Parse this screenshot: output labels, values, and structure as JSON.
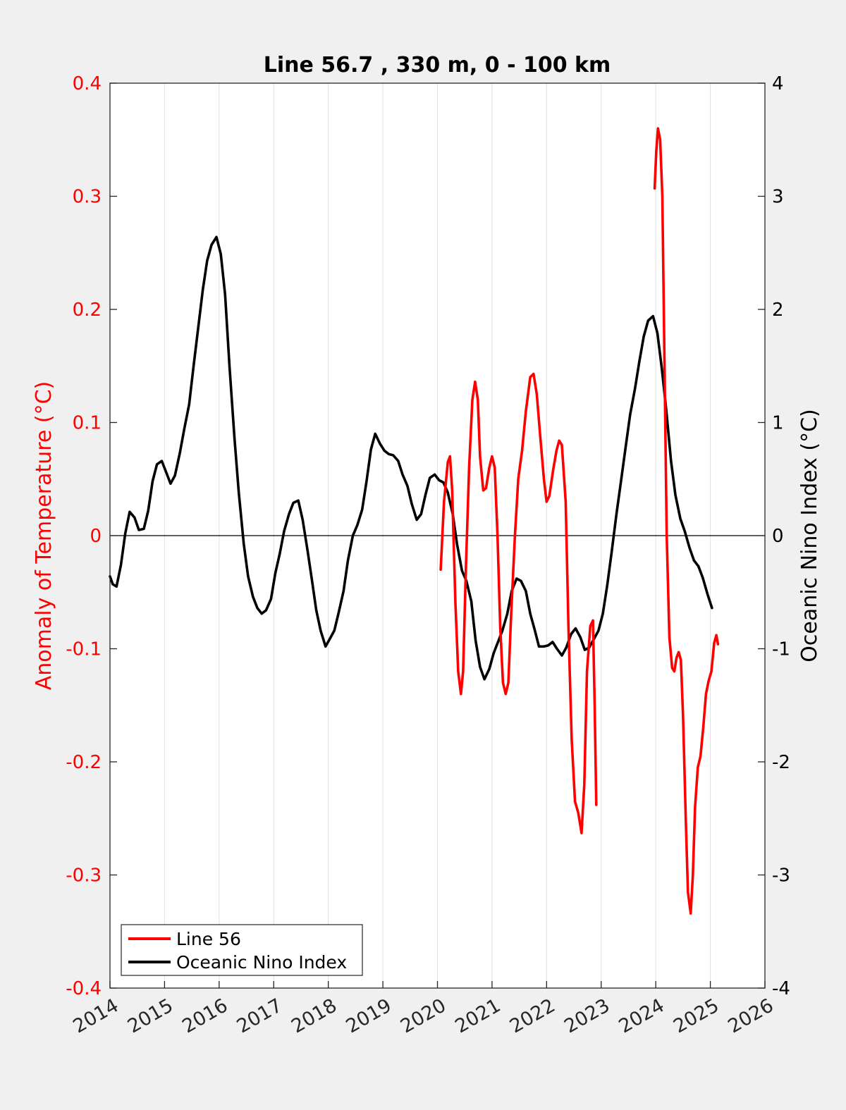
{
  "chart_data": {
    "type": "line",
    "title": "Line 56.7 , 330 m, 0 - 100 km",
    "xlabel": "",
    "ylabel_left": "Anomaly of Temperature (°C)",
    "ylabel_right": "Oceanic Nino Index (°C)",
    "xlim": [
      2014,
      2026
    ],
    "ylim_left": [
      -0.4,
      0.4
    ],
    "ylim_right": [
      -4,
      4
    ],
    "x_ticks": [
      "2014",
      "2015",
      "2016",
      "2017",
      "2018",
      "2019",
      "2020",
      "2021",
      "2022",
      "2023",
      "2024",
      "2025",
      "2026"
    ],
    "y_ticks_left": [
      "-0.4",
      "-0.3",
      "-0.2",
      "-0.1",
      "0",
      "0.1",
      "0.2",
      "0.3",
      "0.4"
    ],
    "y_ticks_right": [
      "-4",
      "-3",
      "-2",
      "-1",
      "0",
      "1",
      "2",
      "3",
      "4"
    ],
    "grid": "vertical",
    "zero_line": true,
    "legend_position": "bottom-left",
    "colors": {
      "line56": "#ff0000",
      "oni": "#000000",
      "left_axis": "#ff0000",
      "right_axis": "#000000",
      "plot_bg": "#ffffff",
      "page_bg": "#f0f0f0",
      "grid": "#e0e0e0"
    },
    "series": [
      {
        "name": "Line 56",
        "axis": "left",
        "color": "#ff0000",
        "segments": [
          [
            [
              2020.06,
              -0.03
            ],
            [
              2020.12,
              0.03
            ],
            [
              2020.19,
              0.065
            ],
            [
              2020.23,
              0.07
            ],
            [
              2020.27,
              0.04
            ],
            [
              2020.33,
              -0.06
            ],
            [
              2020.38,
              -0.12
            ],
            [
              2020.43,
              -0.14
            ],
            [
              2020.47,
              -0.12
            ],
            [
              2020.52,
              -0.03
            ],
            [
              2020.58,
              0.06
            ],
            [
              2020.64,
              0.12
            ],
            [
              2020.69,
              0.136
            ],
            [
              2020.74,
              0.12
            ],
            [
              2020.78,
              0.07
            ],
            [
              2020.84,
              0.04
            ],
            [
              2020.89,
              0.042
            ],
            [
              2020.95,
              0.06
            ],
            [
              2021.0,
              0.07
            ],
            [
              2021.05,
              0.06
            ],
            [
              2021.1,
              0.0
            ],
            [
              2021.15,
              -0.08
            ],
            [
              2021.2,
              -0.13
            ],
            [
              2021.25,
              -0.14
            ],
            [
              2021.3,
              -0.13
            ],
            [
              2021.35,
              -0.07
            ],
            [
              2021.42,
              0.0
            ],
            [
              2021.48,
              0.05
            ],
            [
              2021.55,
              0.075
            ],
            [
              2021.62,
              0.11
            ],
            [
              2021.7,
              0.14
            ],
            [
              2021.76,
              0.143
            ],
            [
              2021.82,
              0.125
            ],
            [
              2021.88,
              0.09
            ],
            [
              2021.95,
              0.05
            ],
            [
              2022.0,
              0.03
            ],
            [
              2022.05,
              0.035
            ],
            [
              2022.12,
              0.058
            ],
            [
              2022.18,
              0.075
            ],
            [
              2022.23,
              0.084
            ],
            [
              2022.28,
              0.08
            ],
            [
              2022.35,
              0.03
            ],
            [
              2022.4,
              -0.08
            ],
            [
              2022.46,
              -0.18
            ],
            [
              2022.52,
              -0.235
            ],
            [
              2022.58,
              -0.245
            ],
            [
              2022.64,
              -0.263
            ],
            [
              2022.69,
              -0.22
            ],
            [
              2022.74,
              -0.12
            ],
            [
              2022.8,
              -0.08
            ],
            [
              2022.85,
              -0.075
            ],
            [
              2022.88,
              -0.15
            ],
            [
              2022.91,
              -0.238
            ]
          ],
          [
            [
              2023.98,
              0.307
            ],
            [
              2024.01,
              0.34
            ],
            [
              2024.04,
              0.36
            ],
            [
              2024.08,
              0.35
            ],
            [
              2024.12,
              0.3
            ],
            [
              2024.16,
              0.15
            ],
            [
              2024.2,
              0.0
            ],
            [
              2024.25,
              -0.09
            ],
            [
              2024.3,
              -0.117
            ],
            [
              2024.34,
              -0.12
            ],
            [
              2024.38,
              -0.108
            ],
            [
              2024.42,
              -0.103
            ],
            [
              2024.46,
              -0.11
            ],
            [
              2024.5,
              -0.16
            ],
            [
              2024.55,
              -0.25
            ],
            [
              2024.59,
              -0.315
            ],
            [
              2024.64,
              -0.334
            ],
            [
              2024.68,
              -0.3
            ],
            [
              2024.72,
              -0.24
            ],
            [
              2024.77,
              -0.205
            ],
            [
              2024.82,
              -0.195
            ],
            [
              2024.87,
              -0.17
            ],
            [
              2024.92,
              -0.14
            ],
            [
              2024.97,
              -0.128
            ],
            [
              2025.02,
              -0.12
            ],
            [
              2025.07,
              -0.095
            ],
            [
              2025.11,
              -0.088
            ],
            [
              2025.14,
              -0.096
            ]
          ]
        ]
      },
      {
        "name": "Oceanic Nino Index",
        "axis": "right",
        "color": "#000000",
        "points": [
          [
            2014.0,
            -0.36
          ],
          [
            2014.05,
            -0.43
          ],
          [
            2014.12,
            -0.45
          ],
          [
            2014.2,
            -0.26
          ],
          [
            2014.28,
            0.02
          ],
          [
            2014.36,
            0.21
          ],
          [
            2014.45,
            0.16
          ],
          [
            2014.53,
            0.05
          ],
          [
            2014.62,
            0.06
          ],
          [
            2014.7,
            0.22
          ],
          [
            2014.78,
            0.48
          ],
          [
            2014.86,
            0.63
          ],
          [
            2014.95,
            0.66
          ],
          [
            2015.03,
            0.56
          ],
          [
            2015.11,
            0.46
          ],
          [
            2015.19,
            0.53
          ],
          [
            2015.28,
            0.73
          ],
          [
            2015.36,
            0.94
          ],
          [
            2015.45,
            1.16
          ],
          [
            2015.53,
            1.49
          ],
          [
            2015.62,
            1.85
          ],
          [
            2015.7,
            2.17
          ],
          [
            2015.78,
            2.43
          ],
          [
            2015.86,
            2.57
          ],
          [
            2015.95,
            2.64
          ],
          [
            2016.03,
            2.49
          ],
          [
            2016.11,
            2.13
          ],
          [
            2016.19,
            1.5
          ],
          [
            2016.28,
            0.87
          ],
          [
            2016.36,
            0.38
          ],
          [
            2016.45,
            -0.07
          ],
          [
            2016.53,
            -0.36
          ],
          [
            2016.62,
            -0.54
          ],
          [
            2016.7,
            -0.64
          ],
          [
            2016.78,
            -0.69
          ],
          [
            2016.86,
            -0.66
          ],
          [
            2016.95,
            -0.56
          ],
          [
            2017.03,
            -0.33
          ],
          [
            2017.11,
            -0.16
          ],
          [
            2017.19,
            0.04
          ],
          [
            2017.28,
            0.19
          ],
          [
            2017.36,
            0.29
          ],
          [
            2017.45,
            0.31
          ],
          [
            2017.53,
            0.14
          ],
          [
            2017.62,
            -0.13
          ],
          [
            2017.7,
            -0.39
          ],
          [
            2017.78,
            -0.66
          ],
          [
            2017.86,
            -0.84
          ],
          [
            2017.95,
            -0.98
          ],
          [
            2018.03,
            -0.91
          ],
          [
            2018.11,
            -0.84
          ],
          [
            2018.19,
            -0.68
          ],
          [
            2018.28,
            -0.49
          ],
          [
            2018.36,
            -0.22
          ],
          [
            2018.45,
            0.0
          ],
          [
            2018.53,
            0.09
          ],
          [
            2018.62,
            0.23
          ],
          [
            2018.7,
            0.48
          ],
          [
            2018.78,
            0.76
          ],
          [
            2018.86,
            0.9
          ],
          [
            2018.95,
            0.81
          ],
          [
            2019.03,
            0.75
          ],
          [
            2019.11,
            0.72
          ],
          [
            2019.19,
            0.71
          ],
          [
            2019.28,
            0.66
          ],
          [
            2019.36,
            0.54
          ],
          [
            2019.45,
            0.44
          ],
          [
            2019.53,
            0.28
          ],
          [
            2019.62,
            0.14
          ],
          [
            2019.7,
            0.19
          ],
          [
            2019.78,
            0.36
          ],
          [
            2019.86,
            0.51
          ],
          [
            2019.95,
            0.54
          ],
          [
            2020.03,
            0.49
          ],
          [
            2020.11,
            0.47
          ],
          [
            2020.19,
            0.38
          ],
          [
            2020.28,
            0.19
          ],
          [
            2020.36,
            -0.08
          ],
          [
            2020.45,
            -0.31
          ],
          [
            2020.53,
            -0.4
          ],
          [
            2020.62,
            -0.58
          ],
          [
            2020.7,
            -0.93
          ],
          [
            2020.78,
            -1.16
          ],
          [
            2020.86,
            -1.27
          ],
          [
            2020.95,
            -1.18
          ],
          [
            2021.03,
            -1.04
          ],
          [
            2021.11,
            -0.94
          ],
          [
            2021.19,
            -0.84
          ],
          [
            2021.28,
            -0.69
          ],
          [
            2021.36,
            -0.49
          ],
          [
            2021.45,
            -0.38
          ],
          [
            2021.53,
            -0.4
          ],
          [
            2021.62,
            -0.49
          ],
          [
            2021.7,
            -0.69
          ],
          [
            2021.78,
            -0.83
          ],
          [
            2021.86,
            -0.98
          ],
          [
            2021.95,
            -0.98
          ],
          [
            2022.03,
            -0.97
          ],
          [
            2022.11,
            -0.94
          ],
          [
            2022.19,
            -1.0
          ],
          [
            2022.28,
            -1.06
          ],
          [
            2022.36,
            -0.99
          ],
          [
            2022.45,
            -0.87
          ],
          [
            2022.53,
            -0.82
          ],
          [
            2022.62,
            -0.9
          ],
          [
            2022.7,
            -1.01
          ],
          [
            2022.78,
            -0.99
          ],
          [
            2022.86,
            -0.92
          ],
          [
            2022.95,
            -0.84
          ],
          [
            2023.03,
            -0.69
          ],
          [
            2023.11,
            -0.44
          ],
          [
            2023.19,
            -0.15
          ],
          [
            2023.28,
            0.19
          ],
          [
            2023.36,
            0.47
          ],
          [
            2023.45,
            0.79
          ],
          [
            2023.53,
            1.07
          ],
          [
            2023.62,
            1.3
          ],
          [
            2023.7,
            1.54
          ],
          [
            2023.78,
            1.76
          ],
          [
            2023.86,
            1.9
          ],
          [
            2023.95,
            1.94
          ],
          [
            2024.03,
            1.79
          ],
          [
            2024.11,
            1.48
          ],
          [
            2024.19,
            1.12
          ],
          [
            2024.28,
            0.66
          ],
          [
            2024.36,
            0.36
          ],
          [
            2024.45,
            0.15
          ],
          [
            2024.53,
            0.04
          ],
          [
            2024.62,
            -0.11
          ],
          [
            2024.7,
            -0.22
          ],
          [
            2024.78,
            -0.27
          ],
          [
            2024.86,
            -0.37
          ],
          [
            2024.95,
            -0.52
          ],
          [
            2025.03,
            -0.64
          ]
        ]
      }
    ]
  }
}
